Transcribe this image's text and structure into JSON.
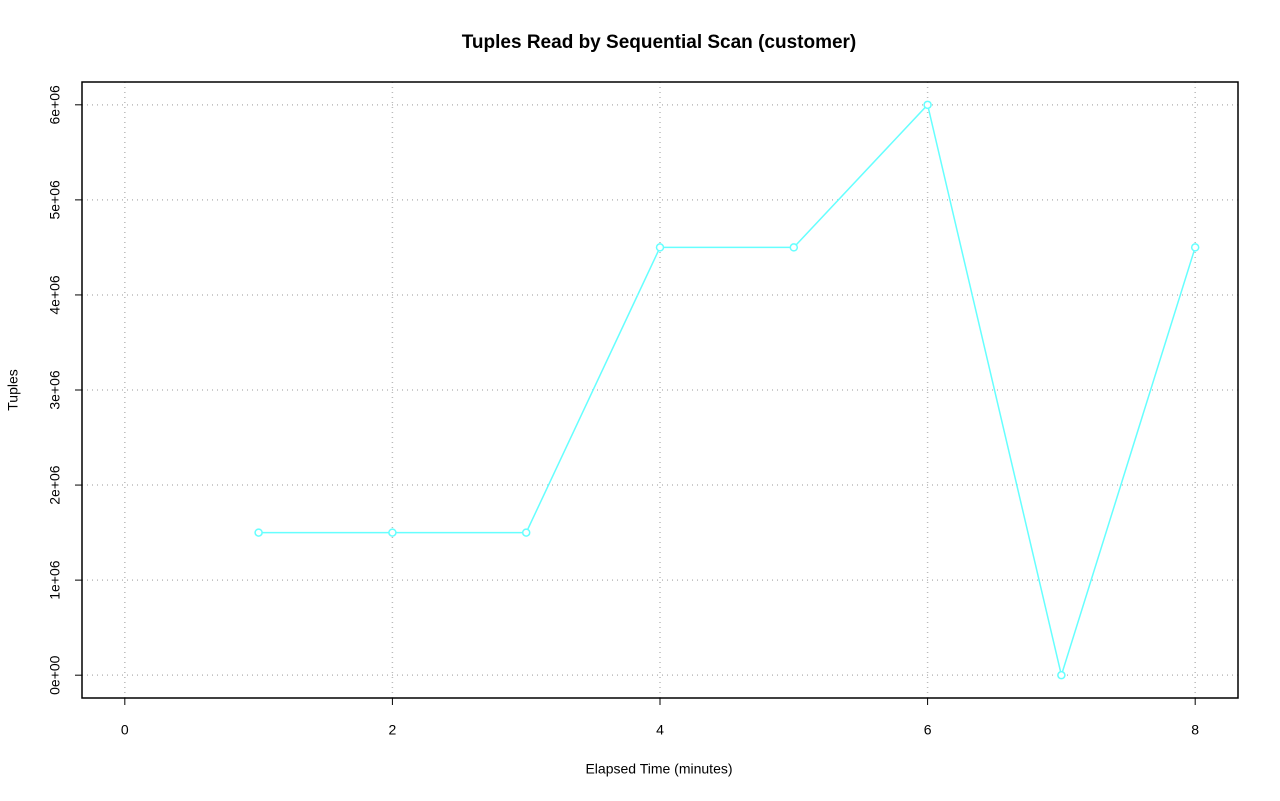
{
  "chart_data": {
    "type": "line",
    "title": "Tuples Read by Sequential Scan (customer)",
    "x_label": "Elapsed Time (minutes)",
    "y_label": "Tuples",
    "x": [
      1,
      2,
      3,
      4,
      5,
      6,
      7,
      8
    ],
    "series": [
      {
        "color": "#66ffff",
        "values": [
          1500000,
          1500000,
          1500000,
          4500000,
          4500000,
          6000000,
          0,
          4500000
        ]
      }
    ],
    "xlim": [
      -0.32,
      8.32
    ],
    "xticks": [
      0,
      2,
      4,
      6,
      8
    ],
    "ylim": [
      -240000,
      6240000
    ],
    "yticks": [
      {
        "value": 0,
        "label": "0e+00"
      },
      {
        "value": 1000000,
        "label": "1e+06"
      },
      {
        "value": 2000000,
        "label": "2e+06"
      },
      {
        "value": 3000000,
        "label": "3e+06"
      },
      {
        "value": 4000000,
        "label": "4e+06"
      },
      {
        "value": 5000000,
        "label": "5e+06"
      },
      {
        "value": 6000000,
        "label": "6e+06"
      }
    ],
    "grid": true
  }
}
